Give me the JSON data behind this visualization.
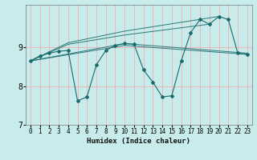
{
  "xlabel": "Humidex (Indice chaleur)",
  "bg_color": "#c8ecec",
  "grid_color": "#f0b0b0",
  "line_color": "#1a6b6b",
  "xlim": [
    -0.5,
    23.5
  ],
  "ylim": [
    7.0,
    10.1
  ],
  "yticks": [
    7,
    8,
    9
  ],
  "xticks": [
    0,
    1,
    2,
    3,
    4,
    5,
    6,
    7,
    8,
    9,
    10,
    11,
    12,
    13,
    14,
    15,
    16,
    17,
    18,
    19,
    20,
    21,
    22,
    23
  ],
  "series": [
    [
      0,
      8.65
    ],
    [
      1,
      8.78
    ],
    [
      2,
      8.85
    ],
    [
      3,
      8.9
    ],
    [
      4,
      8.92
    ],
    [
      5,
      7.62
    ],
    [
      6,
      7.72
    ],
    [
      7,
      8.55
    ],
    [
      8,
      8.92
    ],
    [
      9,
      9.05
    ],
    [
      10,
      9.1
    ],
    [
      11,
      9.08
    ],
    [
      12,
      8.42
    ],
    [
      13,
      8.1
    ],
    [
      14,
      7.72
    ],
    [
      15,
      7.75
    ],
    [
      16,
      8.65
    ],
    [
      17,
      9.38
    ],
    [
      18,
      9.72
    ],
    [
      19,
      9.6
    ],
    [
      20,
      9.8
    ],
    [
      21,
      9.72
    ],
    [
      22,
      8.85
    ],
    [
      23,
      8.82
    ]
  ],
  "extra_lines": [
    [
      [
        0,
        8.65
      ],
      [
        4,
        9.12
      ],
      [
        10,
        9.42
      ],
      [
        20,
        9.8
      ]
    ],
    [
      [
        0,
        8.65
      ],
      [
        4,
        9.08
      ],
      [
        10,
        9.32
      ],
      [
        19,
        9.6
      ]
    ],
    [
      [
        0,
        8.65
      ],
      [
        10,
        9.1
      ],
      [
        23,
        8.85
      ]
    ],
    [
      [
        0,
        8.65
      ],
      [
        10,
        9.05
      ],
      [
        23,
        8.82
      ]
    ]
  ]
}
